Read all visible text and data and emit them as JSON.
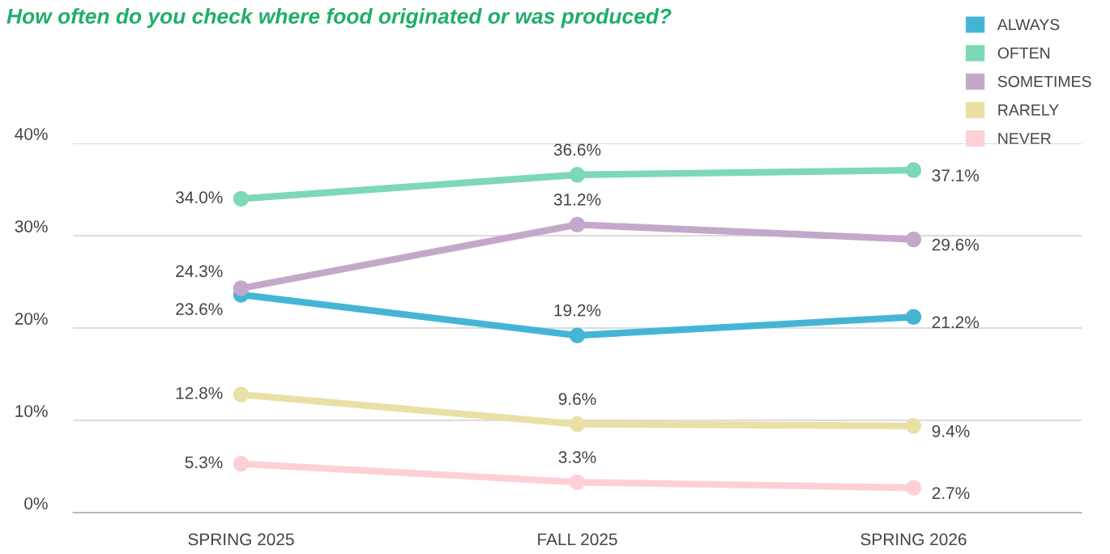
{
  "chart_data": {
    "type": "line",
    "title": "How often do you check where food originated or was produced?",
    "categories": [
      "SPRING 2025",
      "FALL 2025",
      "SPRING 2026"
    ],
    "series": [
      {
        "name": "ALWAYS",
        "color": "#45b5d6",
        "values": [
          23.6,
          19.2,
          21.2
        ],
        "value_labels": [
          "23.6%",
          "19.2%",
          "21.2%"
        ]
      },
      {
        "name": "OFTEN",
        "color": "#7dd8b5",
        "values": [
          34.0,
          36.6,
          37.1
        ],
        "value_labels": [
          "34.0%",
          "36.6%",
          "37.1%"
        ]
      },
      {
        "name": "SOMETIMES",
        "color": "#c4a8cb",
        "values": [
          24.3,
          31.2,
          29.6
        ],
        "value_labels": [
          "24.3%",
          "31.2%",
          "29.6%"
        ]
      },
      {
        "name": "RARELY",
        "color": "#e8e0a5",
        "values": [
          12.8,
          9.6,
          9.4
        ],
        "value_labels": [
          "12.8%",
          "9.6%",
          "9.4%"
        ]
      },
      {
        "name": "NEVER",
        "color": "#fdd0d6",
        "values": [
          5.3,
          3.3,
          2.7
        ],
        "value_labels": [
          "5.3%",
          "3.3%",
          "2.7%"
        ]
      }
    ],
    "ylim": [
      0,
      40
    ],
    "yticks": [
      {
        "value": 0,
        "label": "0%"
      },
      {
        "value": 10,
        "label": "10%"
      },
      {
        "value": 20,
        "label": "20%"
      },
      {
        "value": 30,
        "label": "30%"
      },
      {
        "value": 40,
        "label": "40%"
      }
    ],
    "grid": "y",
    "legend": "top right",
    "marker": "circle",
    "line_style": "solid"
  }
}
